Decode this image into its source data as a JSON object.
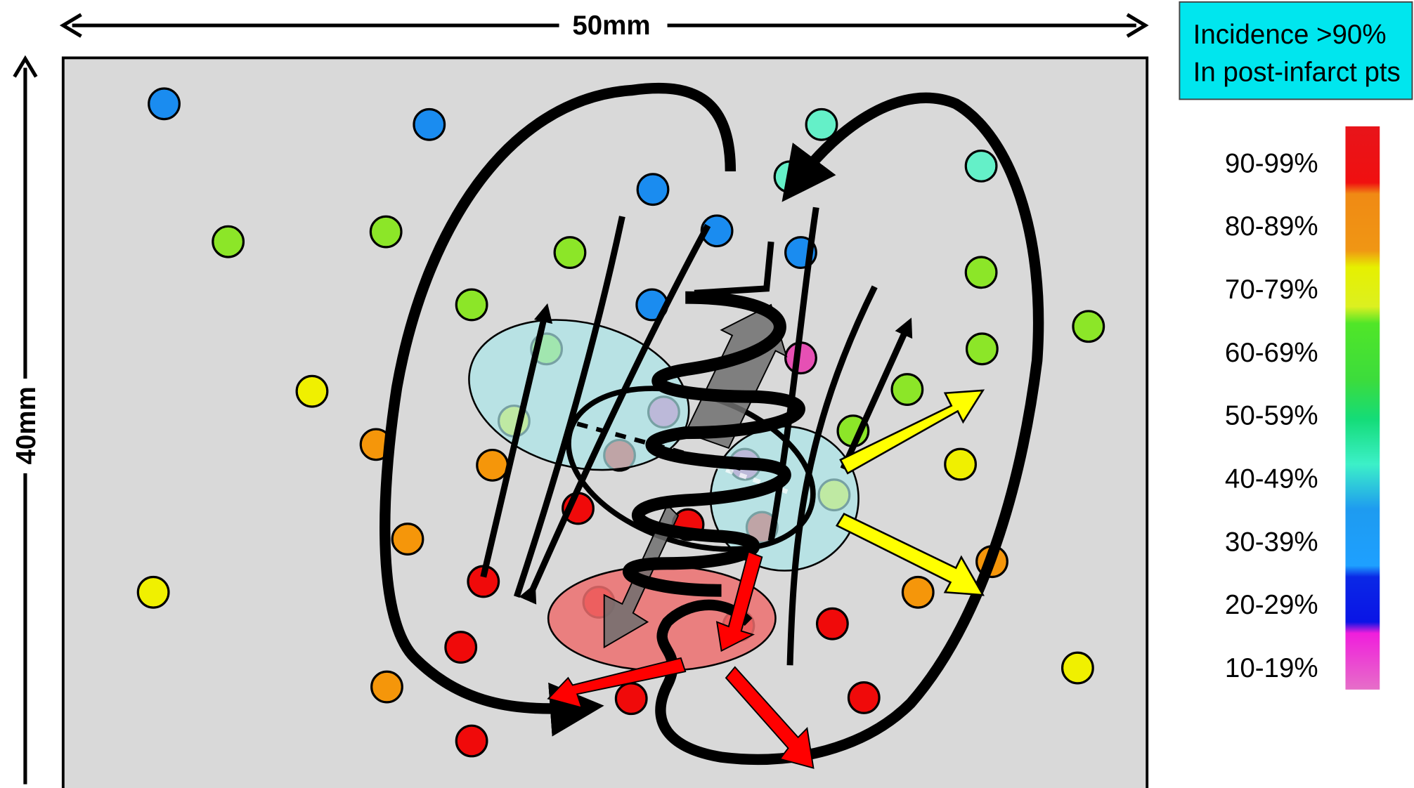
{
  "dimensions": {
    "width": "50mm",
    "height": "40mm"
  },
  "note": {
    "lines": [
      "Incidence >90%",
      "In post-infarct pts"
    ]
  },
  "legend": {
    "labels": [
      "90-99%",
      "80-89%",
      "70-79%",
      "60-69%",
      "50-59%",
      "40-49%",
      "30-39%",
      "20-29%",
      "10-19%"
    ]
  }
}
